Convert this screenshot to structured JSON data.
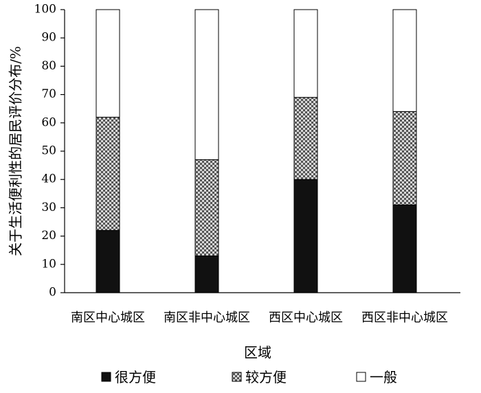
{
  "chart_data": {
    "type": "bar",
    "stacked": true,
    "categories": [
      "南区中心城区",
      "南区非中心城区",
      "西区中心城区",
      "西区非中心城区"
    ],
    "series": [
      {
        "name": "很方便",
        "values": [
          22,
          13,
          40,
          31
        ],
        "color": "#111111",
        "pattern": "solid"
      },
      {
        "name": "较方便",
        "values": [
          40,
          34,
          29,
          33
        ],
        "color": "#9a9a9a",
        "pattern": "checker"
      },
      {
        "name": "一般",
        "values": [
          38,
          53,
          31,
          36
        ],
        "color": "#ffffff",
        "pattern": "empty"
      }
    ],
    "xlabel": "区域",
    "ylabel": "关于生活便利性的居民评价分布/%",
    "ylim": [
      0,
      100
    ],
    "yticks": [
      0,
      10,
      20,
      30,
      40,
      50,
      60,
      70,
      80,
      90,
      100
    ],
    "grid": false,
    "legend_position": "bottom"
  }
}
